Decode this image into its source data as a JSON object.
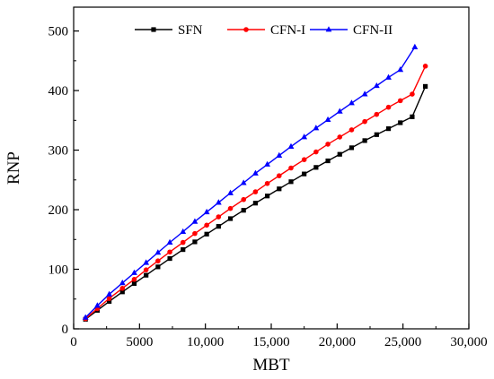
{
  "chart_data": {
    "type": "line",
    "title": "",
    "xlabel": "MBT",
    "ylabel": "RNP",
    "xlim": [
      0,
      30000
    ],
    "ylim": [
      0,
      540
    ],
    "x_ticks": [
      0,
      5000,
      10000,
      15000,
      20000,
      25000,
      30000
    ],
    "x_tick_labels": [
      "0",
      "5000",
      "10,000",
      "15,000",
      "20,000",
      "25,000",
      "30,000"
    ],
    "y_ticks": [
      0,
      100,
      200,
      300,
      400,
      500
    ],
    "y_tick_labels": [
      "0",
      "100",
      "200",
      "300",
      "400",
      "500"
    ],
    "grid": false,
    "legend_position": "top",
    "series": [
      {
        "name": "SFN",
        "color": "#000000",
        "marker": "square",
        "x": [
          900,
          1800,
          2700,
          3700,
          4600,
          5500,
          6400,
          7300,
          8300,
          9200,
          10100,
          11000,
          11900,
          12900,
          13800,
          14700,
          15600,
          16500,
          17500,
          18400,
          19300,
          20200,
          21100,
          22100,
          23000,
          23900,
          24800,
          25700,
          26700
        ],
        "y": [
          16,
          31,
          46,
          62,
          76,
          90,
          104,
          118,
          133,
          146,
          159,
          172,
          185,
          199,
          211,
          223,
          235,
          247,
          260,
          271,
          282,
          293,
          304,
          316,
          326,
          336,
          346,
          356,
          407
        ]
      },
      {
        "name": "CFN-I",
        "color": "#ff0000",
        "marker": "circle",
        "x": [
          900,
          1800,
          2700,
          3700,
          4600,
          5500,
          6400,
          7300,
          8300,
          9200,
          10100,
          11000,
          11900,
          12900,
          13800,
          14700,
          15600,
          16500,
          17500,
          18400,
          19300,
          20200,
          21100,
          22100,
          23000,
          23900,
          24800,
          25700,
          26700
        ],
        "y": [
          17,
          34,
          51,
          68,
          83,
          99,
          114,
          129,
          145,
          160,
          174,
          188,
          202,
          217,
          230,
          244,
          257,
          270,
          284,
          297,
          310,
          322,
          334,
          348,
          360,
          372,
          383,
          394,
          441
        ]
      },
      {
        "name": "CFN-II",
        "color": "#0000ff",
        "marker": "triangle",
        "x": [
          900,
          1800,
          2700,
          3700,
          4600,
          5500,
          6400,
          7300,
          8300,
          9200,
          10100,
          11000,
          11900,
          12900,
          13800,
          14700,
          15600,
          16500,
          17500,
          18400,
          19300,
          20200,
          21100,
          22100,
          23000,
          23900,
          24800,
          25900
        ],
        "y": [
          19,
          39,
          58,
          77,
          94,
          111,
          128,
          145,
          163,
          180,
          196,
          212,
          228,
          245,
          261,
          276,
          291,
          306,
          322,
          337,
          351,
          365,
          379,
          394,
          408,
          422,
          435,
          473
        ]
      }
    ]
  }
}
